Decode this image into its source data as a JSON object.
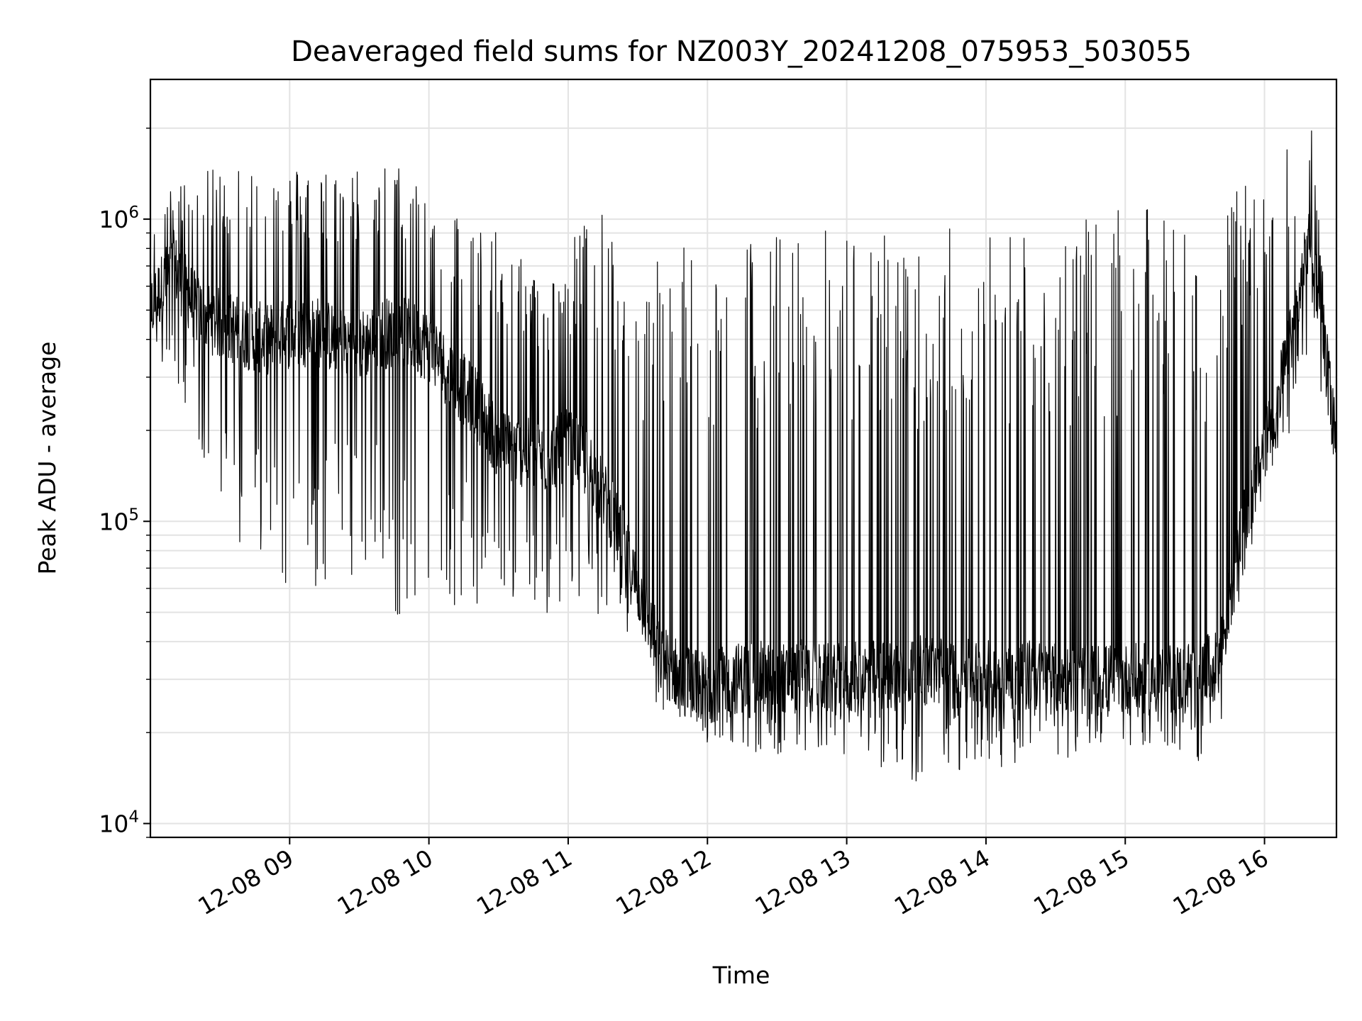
{
  "chart_data": {
    "type": "line",
    "title": "Deaveraged field sums for NZ003Y_20241208_075953_503055",
    "xlabel": "Time",
    "ylabel": "Peak ADU - average",
    "yscale": "log",
    "ylim": [
      9000,
      2900000
    ],
    "xlim": [
      "2024-12-08 08:00",
      "2024-12-08 16:31"
    ],
    "grid": "on (major and minor)",
    "legend": "none",
    "line_color": "#000000",
    "x_ticks": [
      {
        "value": "2024-12-08 09:00",
        "label": "12-08 09"
      },
      {
        "value": "2024-12-08 10:00",
        "label": "12-08 10"
      },
      {
        "value": "2024-12-08 11:00",
        "label": "12-08 11"
      },
      {
        "value": "2024-12-08 12:00",
        "label": "12-08 12"
      },
      {
        "value": "2024-12-08 13:00",
        "label": "12-08 13"
      },
      {
        "value": "2024-12-08 14:00",
        "label": "12-08 14"
      },
      {
        "value": "2024-12-08 15:00",
        "label": "12-08 15"
      },
      {
        "value": "2024-12-08 16:00",
        "label": "12-08 16"
      }
    ],
    "y_ticks": [
      {
        "value": 10000,
        "base": "10",
        "exp": "4"
      },
      {
        "value": 100000,
        "base": "10",
        "exp": "5"
      },
      {
        "value": 1000000,
        "base": "10",
        "exp": "6"
      }
    ],
    "series": [
      {
        "values_note_free": true,
        "x": [
          "2024-12-08 08:00",
          "2024-12-08 08:10",
          "2024-12-08 08:20",
          "2024-12-08 08:30",
          "2024-12-08 08:40",
          "2024-12-08 08:50",
          "2024-12-08 09:00",
          "2024-12-08 09:10",
          "2024-12-08 09:20",
          "2024-12-08 09:30",
          "2024-12-08 09:40",
          "2024-12-08 09:50",
          "2024-12-08 10:00",
          "2024-12-08 10:10",
          "2024-12-08 10:20",
          "2024-12-08 10:30",
          "2024-12-08 10:40",
          "2024-12-08 10:50",
          "2024-12-08 11:00",
          "2024-12-08 11:10",
          "2024-12-08 11:20",
          "2024-12-08 11:30",
          "2024-12-08 11:40",
          "2024-12-08 11:50",
          "2024-12-08 12:00",
          "2024-12-08 12:10",
          "2024-12-08 12:20",
          "2024-12-08 12:30",
          "2024-12-08 12:40",
          "2024-12-08 12:50",
          "2024-12-08 13:00",
          "2024-12-08 13:10",
          "2024-12-08 13:20",
          "2024-12-08 13:30",
          "2024-12-08 13:40",
          "2024-12-08 13:50",
          "2024-12-08 14:00",
          "2024-12-08 14:10",
          "2024-12-08 14:20",
          "2024-12-08 14:30",
          "2024-12-08 14:40",
          "2024-12-08 14:50",
          "2024-12-08 15:00",
          "2024-12-08 15:10",
          "2024-12-08 15:20",
          "2024-12-08 15:30",
          "2024-12-08 15:40",
          "2024-12-08 15:50",
          "2024-12-08 16:00",
          "2024-12-08 16:10",
          "2024-12-08 16:20",
          "2024-12-08 16:30"
        ],
        "base": [
          500000,
          700000,
          500000,
          450000,
          420000,
          400000,
          420000,
          430000,
          400000,
          380000,
          420000,
          420000,
          380000,
          300000,
          250000,
          180000,
          170000,
          160000,
          180000,
          150000,
          100000,
          60000,
          35000,
          30000,
          28000,
          30000,
          31000,
          30000,
          31000,
          30000,
          30000,
          31000,
          31000,
          32000,
          32000,
          31000,
          31000,
          31000,
          31000,
          30000,
          30000,
          30000,
          30000,
          30000,
          30000,
          31000,
          33000,
          90000,
          180000,
          350000,
          900000,
          200000
        ],
        "low": [
          420000,
          250000,
          180000,
          120000,
          80000,
          65000,
          60000,
          58000,
          60000,
          70000,
          55000,
          45000,
          50000,
          50000,
          48000,
          50000,
          45000,
          45000,
          55000,
          50000,
          40000,
          30000,
          20000,
          19000,
          16000,
          18000,
          17000,
          16000,
          17000,
          16000,
          15000,
          16000,
          14000,
          12000,
          14000,
          15000,
          16000,
          15000,
          17000,
          16000,
          17000,
          17000,
          18000,
          18000,
          17000,
          16000,
          16000,
          60000,
          120000,
          180000,
          400000,
          160000
        ],
        "high": [
          1000000,
          1300000,
          1400000,
          1500000,
          1600000,
          1550000,
          1500000,
          1500000,
          1500000,
          1500000,
          1550000,
          1500000,
          1300000,
          1100000,
          1000000,
          900000,
          800000,
          600000,
          800000,
          1200000,
          900000,
          500000,
          900000,
          900000,
          900000,
          900000,
          900000,
          950000,
          900000,
          950000,
          950000,
          950000,
          900000,
          900000,
          950000,
          1000000,
          1000000,
          1000000,
          1000000,
          1000000,
          1000000,
          1000000,
          1100000,
          1100000,
          1000000,
          1000000,
          1000000,
          1300000,
          1600000,
          1800000,
          2200000,
          220000
        ]
      }
    ]
  }
}
